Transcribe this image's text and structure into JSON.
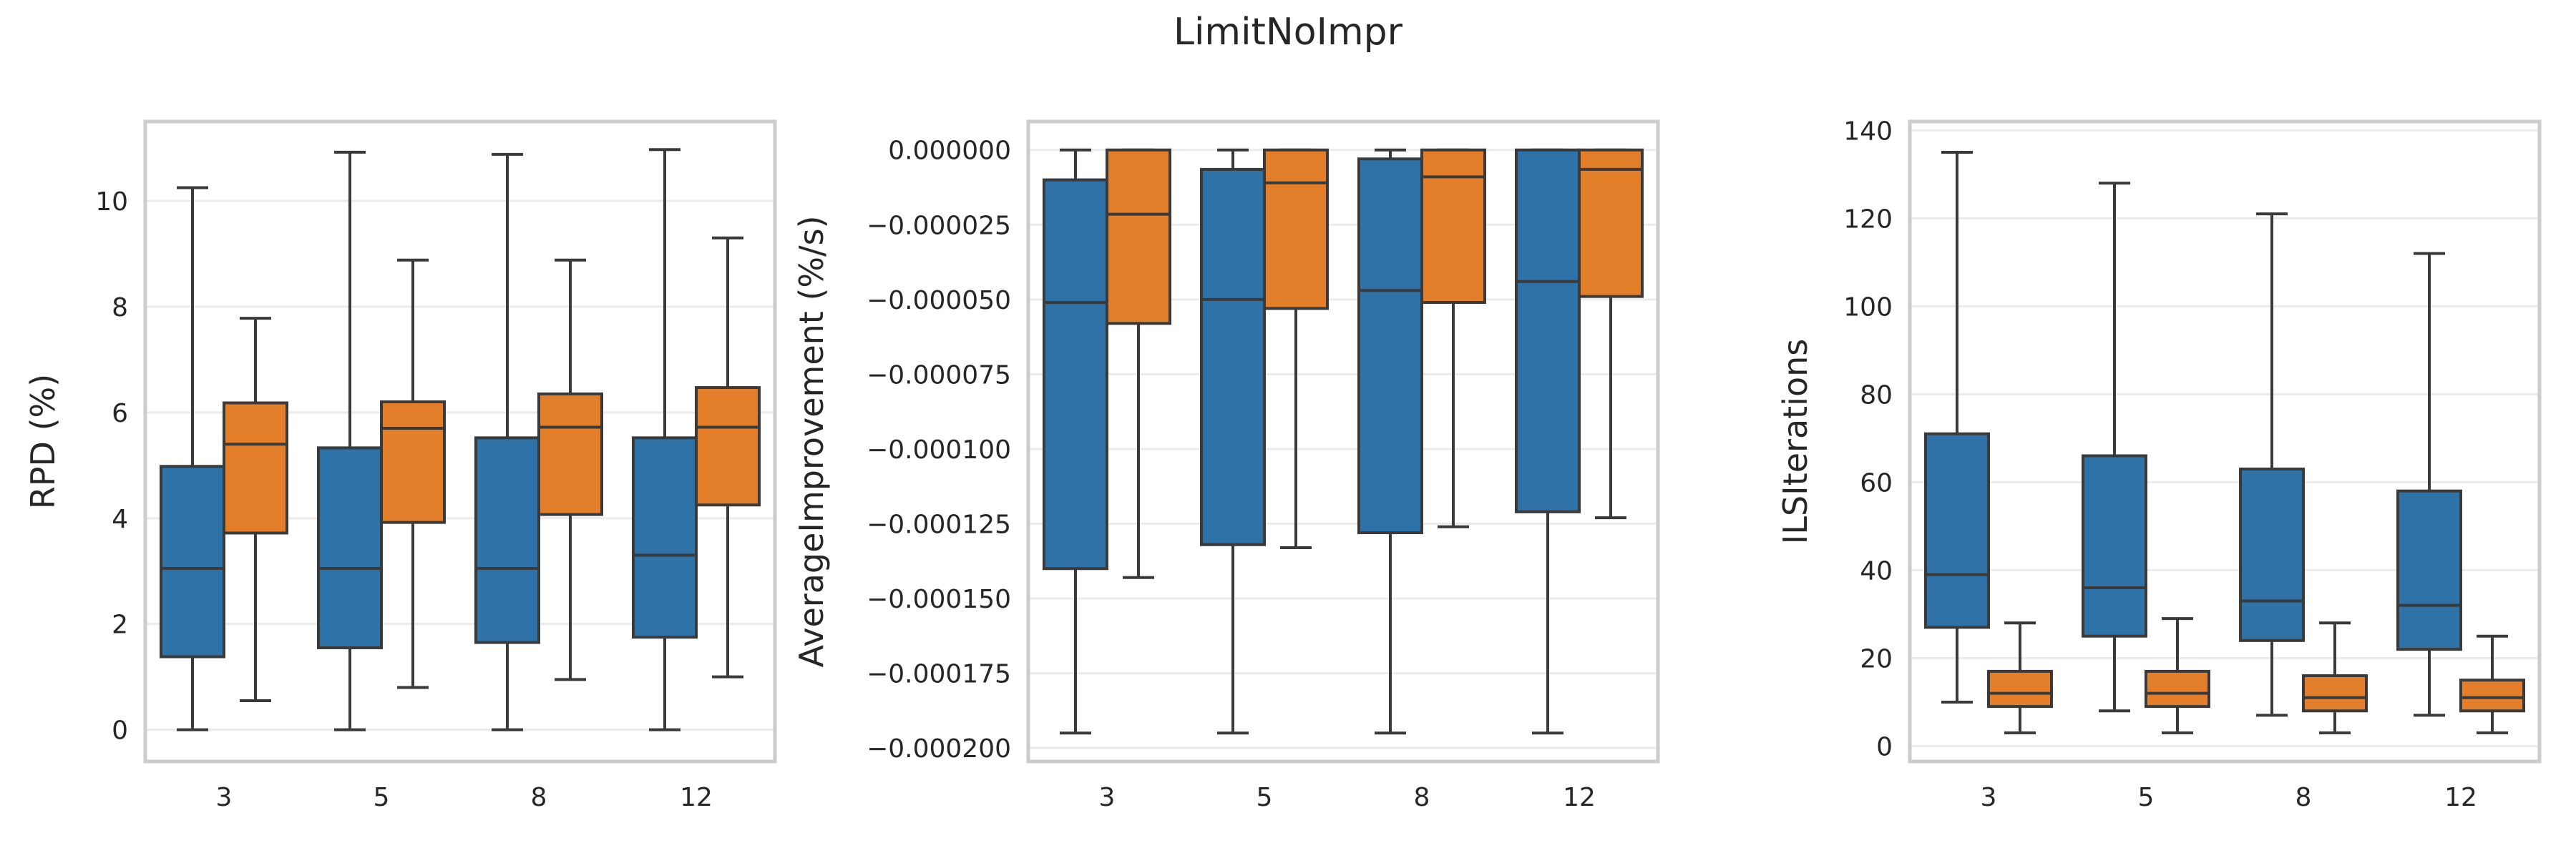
{
  "figure_title": "LimitNoImpr",
  "colors": {
    "series_a": "#2f72a8",
    "series_b": "#e37f2b",
    "edge": "#3a3a3a",
    "grid": "#ebebeb",
    "frame": "#cccccc"
  },
  "chart_data": [
    {
      "type": "box",
      "xlabel": "",
      "ylabel": "RPD (%)",
      "categories": [
        "3",
        "5",
        "8",
        "12"
      ],
      "ylim": [
        -0.6,
        11.5
      ],
      "yticks": [
        0,
        2,
        4,
        6,
        8,
        10
      ],
      "ytick_labels": [
        "0",
        "2",
        "4",
        "6",
        "8",
        "10"
      ],
      "grid": true,
      "series": [
        {
          "color": "#2f72a8",
          "boxes": [
            {
              "whislo": 0,
              "q1": 1.38,
              "med": 3.05,
              "q3": 4.98,
              "whishi": 10.25
            },
            {
              "whislo": 0,
              "q1": 1.55,
              "med": 3.05,
              "q3": 5.33,
              "whishi": 10.92
            },
            {
              "whislo": 0,
              "q1": 1.65,
              "med": 3.05,
              "q3": 5.52,
              "whishi": 10.88
            },
            {
              "whislo": 0,
              "q1": 1.75,
              "med": 3.3,
              "q3": 5.52,
              "whishi": 10.97
            }
          ]
        },
        {
          "color": "#e37f2b",
          "boxes": [
            {
              "whislo": 0.55,
              "q1": 3.72,
              "med": 5.4,
              "q3": 6.18,
              "whishi": 7.78
            },
            {
              "whislo": 0.8,
              "q1": 3.92,
              "med": 5.7,
              "q3": 6.2,
              "whishi": 8.88
            },
            {
              "whislo": 0.95,
              "q1": 4.07,
              "med": 5.72,
              "q3": 6.35,
              "whishi": 8.88
            },
            {
              "whislo": 1.0,
              "q1": 4.25,
              "med": 5.72,
              "q3": 6.47,
              "whishi": 9.3
            }
          ]
        }
      ]
    },
    {
      "type": "box",
      "xlabel": "",
      "ylabel": "AverageImprovement (%/s)",
      "categories": [
        "3",
        "5",
        "8",
        "12"
      ],
      "ylim": [
        -0.0002045,
        9.5e-06
      ],
      "yticks": [
        0,
        -2.5e-05,
        -5e-05,
        -7.5e-05,
        -0.0001,
        -0.000125,
        -0.00015,
        -0.000175,
        -0.0002
      ],
      "ytick_labels": [
        "0.000000",
        "−0.000025",
        "−0.000050",
        "−0.000075",
        "−0.000100",
        "−0.000125",
        "−0.000150",
        "−0.000175",
        "−0.000200"
      ],
      "grid": true,
      "series": [
        {
          "color": "#2f72a8",
          "boxes": [
            {
              "whislo": -0.000195,
              "q1": -0.00014,
              "med": -5.1e-05,
              "q3": -1e-05,
              "whishi": 0
            },
            {
              "whislo": -0.000195,
              "q1": -0.000132,
              "med": -5e-05,
              "q3": -6.5e-06,
              "whishi": 0
            },
            {
              "whislo": -0.000195,
              "q1": -0.000128,
              "med": -4.7e-05,
              "q3": -3e-06,
              "whishi": 0
            },
            {
              "whislo": -0.000195,
              "q1": -0.000121,
              "med": -4.4e-05,
              "q3": 0,
              "whishi": 0
            }
          ]
        },
        {
          "color": "#e37f2b",
          "boxes": [
            {
              "whislo": -0.000143,
              "q1": -5.8e-05,
              "med": -2.15e-05,
              "q3": 0,
              "whishi": 0
            },
            {
              "whislo": -0.000133,
              "q1": -5.3e-05,
              "med": -1.1e-05,
              "q3": 0,
              "whishi": 0
            },
            {
              "whislo": -0.000126,
              "q1": -5.1e-05,
              "med": -9e-06,
              "q3": 0,
              "whishi": 0
            },
            {
              "whislo": -0.000123,
              "q1": -4.9e-05,
              "med": -6.5e-06,
              "q3": 0,
              "whishi": 0
            }
          ]
        }
      ]
    },
    {
      "type": "box",
      "xlabel": "",
      "ylabel": "ILSIterations",
      "categories": [
        "3",
        "5",
        "8",
        "12"
      ],
      "ylim": [
        -3.5,
        142
      ],
      "yticks": [
        0,
        20,
        40,
        60,
        80,
        100,
        120,
        140
      ],
      "ytick_labels": [
        "0",
        "20",
        "40",
        "60",
        "80",
        "100",
        "120",
        "140"
      ],
      "grid": true,
      "series": [
        {
          "color": "#2f72a8",
          "boxes": [
            {
              "whislo": 10,
              "q1": 27,
              "med": 39,
              "q3": 71,
              "whishi": 135
            },
            {
              "whislo": 8,
              "q1": 25,
              "med": 36,
              "q3": 66,
              "whishi": 128
            },
            {
              "whislo": 7,
              "q1": 24,
              "med": 33,
              "q3": 63,
              "whishi": 121
            },
            {
              "whislo": 7,
              "q1": 22,
              "med": 32,
              "q3": 58,
              "whishi": 112
            }
          ]
        },
        {
          "color": "#e37f2b",
          "boxes": [
            {
              "whislo": 3,
              "q1": 9,
              "med": 12,
              "q3": 17,
              "whishi": 28
            },
            {
              "whislo": 3,
              "q1": 9,
              "med": 12,
              "q3": 17,
              "whishi": 29
            },
            {
              "whislo": 3,
              "q1": 8,
              "med": 11,
              "q3": 16,
              "whishi": 28
            },
            {
              "whislo": 3,
              "q1": 8,
              "med": 11,
              "q3": 15,
              "whishi": 25
            }
          ]
        }
      ]
    }
  ]
}
